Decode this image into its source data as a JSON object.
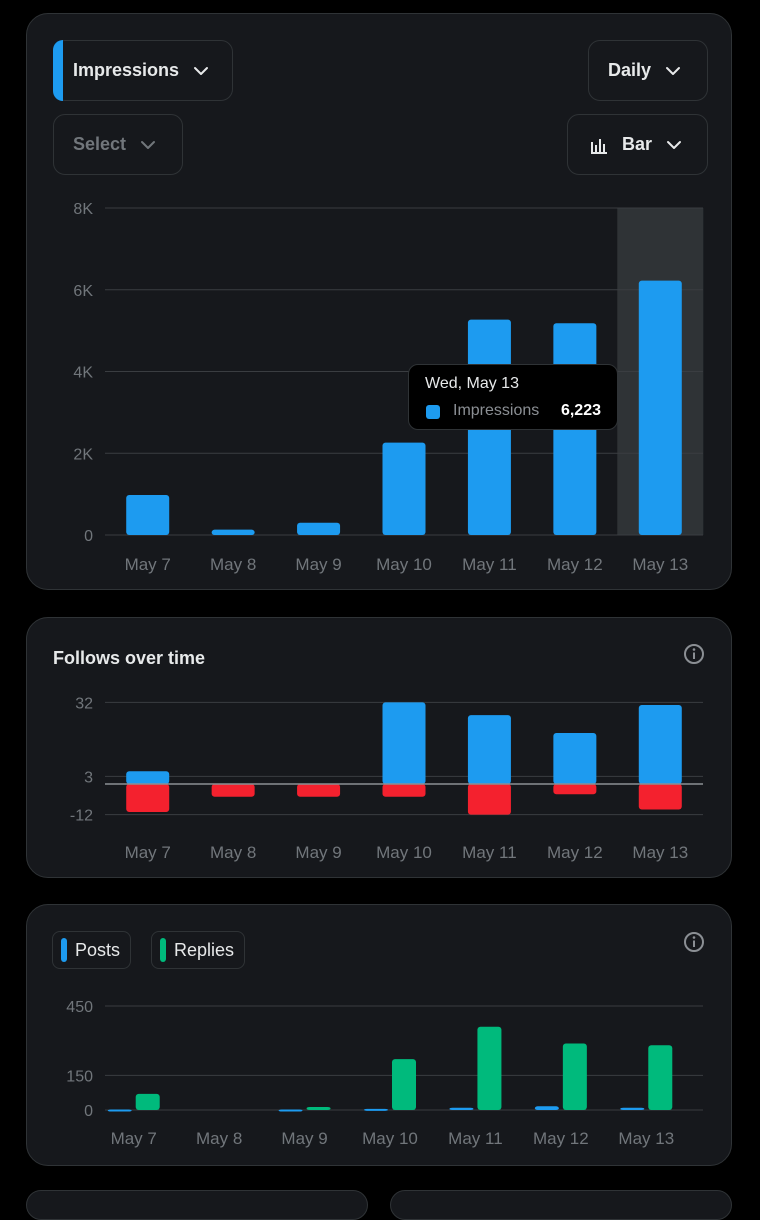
{
  "impressions_card": {
    "metric_label": "Impressions",
    "interval_label": "Daily",
    "compare_label": "Select",
    "chart_type_label": "Bar",
    "tooltip": {
      "date": "Wed, May 13",
      "series": "Impressions",
      "value": "6,223"
    }
  },
  "follows_card": {
    "title": "Follows over time"
  },
  "posts_card": {
    "legend": [
      {
        "label": "Posts",
        "color": "#1d9bf0"
      },
      {
        "label": "Replies",
        "color": "#00ba7c"
      }
    ]
  },
  "colors": {
    "blue": "#1d9bf0",
    "green": "#00ba7c",
    "red": "#f4212e"
  },
  "icons": [
    "chevron-down-icon",
    "bar-chart-icon",
    "info-icon"
  ],
  "chart_data": [
    {
      "type": "bar",
      "categories": [
        "May 7",
        "May 8",
        "May 9",
        "May 10",
        "May 11",
        "May 12",
        "May 13"
      ],
      "series": [
        {
          "name": "Impressions",
          "values": [
            980,
            130,
            300,
            2260,
            5270,
            5180,
            6223
          ]
        }
      ],
      "ylim": [
        0,
        8000
      ],
      "yticks": [
        "0",
        "2K",
        "4K",
        "6K",
        "8K"
      ],
      "highlighted_category": "May 13"
    },
    {
      "type": "bar",
      "categories": [
        "May 7",
        "May 8",
        "May 9",
        "May 10",
        "May 11",
        "May 12",
        "May 13"
      ],
      "series": [
        {
          "values": [
            5,
            0,
            0,
            32,
            27,
            20,
            31
          ]
        },
        {
          "values": [
            -11,
            -5,
            -5,
            -5,
            -12,
            -4,
            -10
          ]
        }
      ],
      "ylim": [
        -12,
        32
      ],
      "yticks": [
        "-12",
        "3",
        "32"
      ]
    },
    {
      "type": "bar",
      "categories": [
        "May 7",
        "May 8",
        "May 9",
        "May 10",
        "May 11",
        "May 12",
        "May 13"
      ],
      "series": [
        {
          "name": "Posts",
          "values": [
            2,
            0,
            2,
            5,
            10,
            16,
            10
          ]
        },
        {
          "name": "Replies",
          "values": [
            70,
            0,
            13,
            220,
            360,
            288,
            280
          ]
        }
      ],
      "ylim": [
        0,
        450
      ],
      "yticks": [
        "0",
        "150",
        "450"
      ]
    }
  ]
}
